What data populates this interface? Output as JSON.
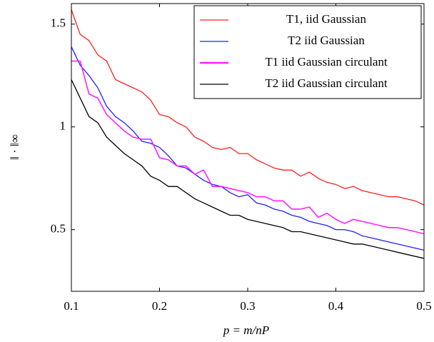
{
  "chart_data": {
    "type": "line",
    "x_label": "p = m/nP",
    "y_label": "‖ · ‖∞",
    "x": [
      0.1,
      0.11,
      0.12,
      0.13,
      0.14,
      0.15,
      0.16,
      0.17,
      0.18,
      0.19,
      0.2,
      0.21,
      0.22,
      0.23,
      0.24,
      0.25,
      0.26,
      0.27,
      0.28,
      0.29,
      0.3,
      0.31,
      0.32,
      0.33,
      0.34,
      0.35,
      0.36,
      0.37,
      0.38,
      0.39,
      0.4,
      0.41,
      0.42,
      0.43,
      0.44,
      0.45,
      0.46,
      0.47,
      0.48,
      0.49,
      0.5
    ],
    "series": [
      {
        "name": "T1, iid Gaussian",
        "color": "#ff2020",
        "values": [
          1.57,
          1.45,
          1.42,
          1.35,
          1.32,
          1.23,
          1.21,
          1.19,
          1.17,
          1.13,
          1.06,
          1.05,
          1.02,
          1.0,
          0.95,
          0.93,
          0.9,
          0.89,
          0.9,
          0.87,
          0.87,
          0.84,
          0.82,
          0.8,
          0.79,
          0.79,
          0.76,
          0.78,
          0.75,
          0.73,
          0.72,
          0.7,
          0.71,
          0.69,
          0.68,
          0.67,
          0.66,
          0.66,
          0.65,
          0.64,
          0.62
        ]
      },
      {
        "name": "T2 iid Gaussian",
        "color": "#2020ff",
        "values": [
          1.39,
          1.3,
          1.25,
          1.19,
          1.1,
          1.05,
          1.02,
          0.98,
          0.93,
          0.92,
          0.9,
          0.86,
          0.81,
          0.8,
          0.77,
          0.74,
          0.72,
          0.71,
          0.68,
          0.66,
          0.67,
          0.63,
          0.62,
          0.6,
          0.59,
          0.57,
          0.56,
          0.54,
          0.53,
          0.52,
          0.5,
          0.5,
          0.49,
          0.47,
          0.46,
          0.45,
          0.44,
          0.43,
          0.42,
          0.41,
          0.4
        ]
      },
      {
        "name": "T1 iid Gaussian circulant",
        "color": "#ff20ff",
        "values": [
          1.32,
          1.32,
          1.16,
          1.14,
          1.06,
          1.02,
          0.98,
          0.95,
          0.94,
          0.94,
          0.85,
          0.84,
          0.81,
          0.81,
          0.77,
          0.79,
          0.71,
          0.71,
          0.7,
          0.69,
          0.68,
          0.66,
          0.66,
          0.64,
          0.64,
          0.6,
          0.6,
          0.61,
          0.56,
          0.58,
          0.55,
          0.53,
          0.55,
          0.54,
          0.53,
          0.52,
          0.51,
          0.51,
          0.5,
          0.49,
          0.48
        ]
      },
      {
        "name": "T2 iid Gaussian circulant",
        "color": "#000000",
        "values": [
          1.23,
          1.14,
          1.05,
          1.02,
          0.95,
          0.91,
          0.87,
          0.84,
          0.81,
          0.76,
          0.74,
          0.71,
          0.71,
          0.68,
          0.65,
          0.63,
          0.61,
          0.59,
          0.57,
          0.57,
          0.55,
          0.54,
          0.53,
          0.52,
          0.51,
          0.49,
          0.49,
          0.48,
          0.47,
          0.46,
          0.45,
          0.44,
          0.43,
          0.43,
          0.42,
          0.41,
          0.4,
          0.39,
          0.38,
          0.37,
          0.36
        ]
      }
    ],
    "xlim": [
      0.1,
      0.5
    ],
    "xticks": [
      0.1,
      0.2,
      0.3,
      0.4,
      0.5
    ],
    "ylim": [
      0.2,
      1.6
    ],
    "yticks": [
      0.5,
      1,
      1.5
    ],
    "grid": false,
    "legend": "upper right"
  }
}
